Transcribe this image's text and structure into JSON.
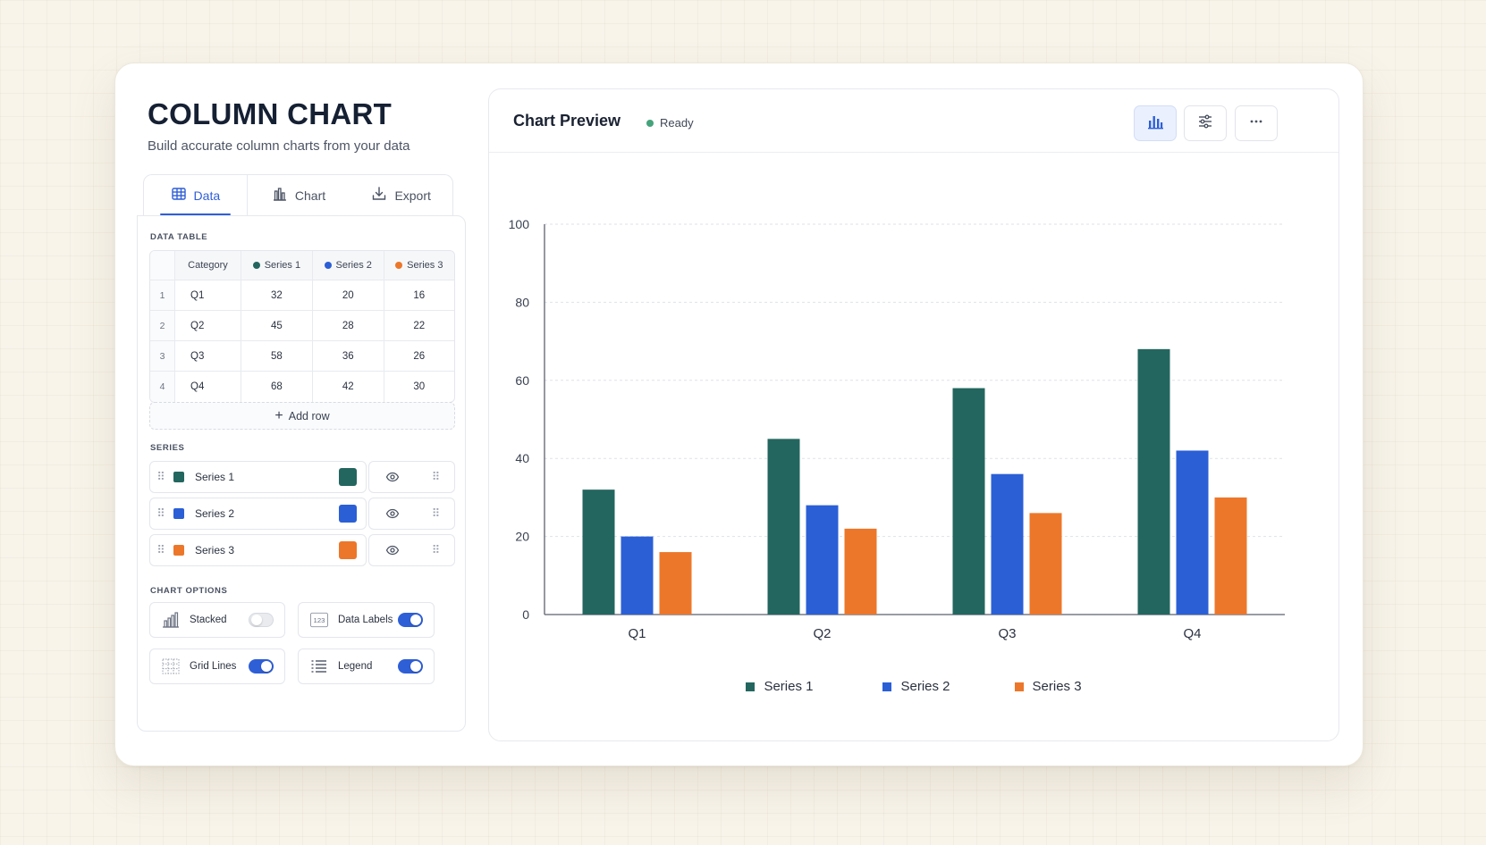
{
  "header": {
    "title": "COLUMN CHART",
    "subtitle": "Build accurate column charts from your data"
  },
  "tabs": [
    {
      "label": "Data",
      "icon": "table-icon",
      "active": true
    },
    {
      "label": "Chart",
      "icon": "bar-chart-icon",
      "active": false
    },
    {
      "label": "Export",
      "icon": "download-icon",
      "active": false
    }
  ],
  "data_table": {
    "section_label": "DATA TABLE",
    "columns": [
      "Category",
      "Series 1",
      "Series 2",
      "Series 3"
    ],
    "rows": [
      {
        "index": "1",
        "category": "Q1",
        "values": [
          "32",
          "20",
          "16"
        ]
      },
      {
        "index": "2",
        "category": "Q2",
        "values": [
          "45",
          "28",
          "22"
        ]
      },
      {
        "index": "3",
        "category": "Q3",
        "values": [
          "58",
          "36",
          "26"
        ]
      },
      {
        "index": "4",
        "category": "Q4",
        "values": [
          "68",
          "42",
          "30"
        ]
      }
    ],
    "add_row_label": "Add row"
  },
  "series": {
    "section_label": "SERIES",
    "items": [
      {
        "name": "Series 1",
        "color": "#23665f",
        "visible": true
      },
      {
        "name": "Series 2",
        "color": "#2b5fd6",
        "visible": true
      },
      {
        "name": "Series 3",
        "color": "#ec772a",
        "visible": true
      }
    ]
  },
  "chart_options": {
    "section_label": "CHART OPTIONS",
    "items": [
      {
        "label": "Stacked",
        "icon": "stacked-bars-icon",
        "enabled": false
      },
      {
        "label": "Data Labels",
        "icon": "data-labels-icon",
        "icon_text": "123",
        "enabled": true
      },
      {
        "label": "Grid Lines",
        "icon": "grid-lines-icon",
        "enabled": true
      },
      {
        "label": "Legend",
        "icon": "legend-list-icon",
        "enabled": true
      }
    ]
  },
  "preview": {
    "title": "Chart Preview",
    "status": "Ready",
    "status_color": "#44a37a",
    "buttons": [
      {
        "icon": "bar-chart-icon",
        "active": true
      },
      {
        "icon": "sliders-icon",
        "active": false
      },
      {
        "icon": "more-horizontal-icon",
        "active": false
      }
    ]
  },
  "chart_data": {
    "type": "bar",
    "categories": [
      "Q1",
      "Q2",
      "Q3",
      "Q4"
    ],
    "series": [
      {
        "name": "Series 1",
        "color": "#23665f",
        "values": [
          32,
          45,
          58,
          68
        ]
      },
      {
        "name": "Series 2",
        "color": "#2b5fd6",
        "values": [
          20,
          28,
          36,
          42
        ]
      },
      {
        "name": "Series 3",
        "color": "#ec772a",
        "values": [
          16,
          22,
          26,
          30
        ]
      }
    ],
    "ylim": [
      0,
      100
    ],
    "yticks": [
      "0",
      "20",
      "40",
      "60",
      "80",
      "100"
    ],
    "grid": true,
    "legend": "bottom-center"
  }
}
